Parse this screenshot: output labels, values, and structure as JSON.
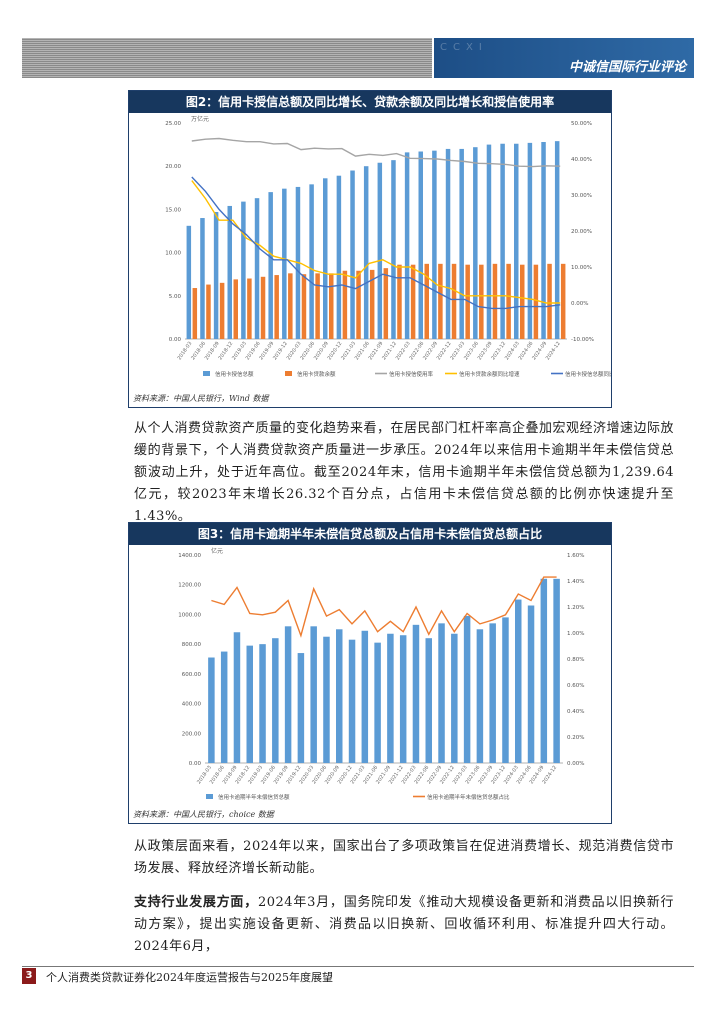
{
  "header": {
    "title": "中诚信国际行业评论",
    "deco": "CCXI"
  },
  "figure2": {
    "caption": "图2：信用卡授信总额及同比增长、贷款余额及同比增长和授信使用率",
    "unit_label": "万亿元",
    "source": "资料来源：中国人民银行，Wind 数据",
    "chart_data": {
      "type": "bar",
      "categories": [
        "2018-03",
        "2018-06",
        "2018-09",
        "2018-12",
        "2019-03",
        "2019-06",
        "2019-09",
        "2019-12",
        "2020-03",
        "2020-06",
        "2020-09",
        "2020-12",
        "2021-03",
        "2021-06",
        "2021-09",
        "2021-12",
        "2022-03",
        "2022-06",
        "2022-09",
        "2022-12",
        "2023-03",
        "2023-06",
        "2023-09",
        "2023-12",
        "2024-03",
        "2024-06",
        "2024-09",
        "2024-12"
      ],
      "x_tick_labels": [
        "2018-03",
        "2018-06",
        "2018-09",
        "2018-12",
        "2019-03",
        "2019-06",
        "2019-09",
        "2019-12",
        "2020-03",
        "2020-06",
        "2020-09",
        "2020-12",
        "2021-03",
        "2021-06",
        "2021-09",
        "2021-12",
        "2022-03",
        "2022-06",
        "2022-09",
        "2022-12",
        "2023-03",
        "2023-06",
        "2023-09",
        "2023-12",
        "2024-03",
        "2024-06",
        "2024-09",
        "2024-12"
      ],
      "y_left_ticks": [
        "0.00",
        "5.00",
        "10.00",
        "15.00",
        "20.00",
        "25.00"
      ],
      "y_right_ticks": [
        "-10.00%",
        "0.00%",
        "10.00%",
        "20.00%",
        "30.00%",
        "40.00%",
        "50.00%"
      ],
      "ylim_left": [
        0,
        25
      ],
      "ylim_right": [
        -10,
        50
      ],
      "series": [
        {
          "name": "信用卡授信总额",
          "kind": "bar",
          "axis": "left",
          "color": "#5b9bd5",
          "values": [
            13.1,
            14.0,
            14.7,
            15.4,
            15.9,
            16.3,
            17.0,
            17.4,
            17.6,
            17.9,
            18.6,
            18.9,
            19.5,
            20.0,
            20.4,
            20.7,
            21.6,
            21.7,
            21.8,
            22.0,
            22.0,
            22.2,
            22.5,
            22.6,
            22.6,
            22.7,
            22.8,
            22.9
          ]
        },
        {
          "name": "信用卡贷款余额",
          "kind": "bar",
          "axis": "left",
          "color": "#ed7d31",
          "values": [
            5.9,
            6.3,
            6.5,
            6.9,
            7.0,
            7.2,
            7.4,
            7.6,
            7.5,
            7.6,
            7.6,
            7.9,
            7.9,
            8.0,
            8.2,
            8.6,
            8.6,
            8.7,
            8.7,
            8.7,
            8.6,
            8.6,
            8.7,
            8.7,
            8.6,
            8.6,
            8.7,
            8.7
          ]
        },
        {
          "name": "信用卡授信使用率",
          "kind": "line",
          "axis": "right",
          "color": "#a5a5a5",
          "values": [
            45.0,
            45.5,
            45.7,
            45.2,
            44.8,
            44.8,
            44.2,
            44.3,
            42.6,
            43.0,
            42.8,
            42.9,
            40.8,
            41.3,
            41.0,
            41.5,
            40.2,
            40.1,
            40.0,
            39.6,
            39.3,
            38.8,
            38.7,
            38.5,
            38.0,
            37.9,
            38.1,
            38.0
          ]
        },
        {
          "name": "信用卡贷款余额同比增速",
          "kind": "line",
          "axis": "right",
          "color": "#ffc000",
          "values": [
            34.0,
            29.0,
            23.0,
            23.0,
            18.0,
            16.0,
            13.0,
            12.0,
            11.0,
            9.0,
            8.0,
            8.0,
            7.0,
            11.0,
            12.0,
            10.0,
            10.0,
            8.0,
            5.0,
            4.0,
            2.0,
            2.0,
            2.0,
            2.0,
            1.5,
            1.0,
            0.0,
            0.0
          ]
        },
        {
          "name": "信用卡授信总额同比增速",
          "kind": "line",
          "axis": "right",
          "color": "#4472c4",
          "values": [
            35.0,
            31.0,
            26.0,
            22.0,
            19.0,
            15.0,
            12.0,
            12.0,
            8.0,
            5.0,
            4.5,
            5.0,
            4.0,
            6.0,
            8.0,
            7.0,
            7.0,
            5.0,
            3.0,
            1.0,
            1.0,
            -1.0,
            -1.5,
            -1.5,
            -1.0,
            -1.0,
            -1.0,
            -0.5
          ]
        }
      ]
    }
  },
  "para1": "从个人消费贷款资产质量的变化趋势来看，在居民部门杠杆率高企叠加宏观经济增速边际放缓的背景下，个人消费贷款资产质量进一步承压。2024年以来信用卡逾期半年未偿信贷总额波动上升，处于近年高位。截至2024年末，信用卡逾期半年未偿信贷总额为1,239.64亿元，较2023年末增长26.32个百分点，占信用卡未偿信贷总额的比例亦快速提升至1.43%。",
  "figure3": {
    "caption": "图3：信用卡逾期半年未偿信贷总额及占信用卡未偿信贷总额占比",
    "unit_label": "亿元",
    "source": "资料来源：中国人民银行，choice 数据",
    "chart_data": {
      "type": "bar",
      "categories": [
        "2018-03",
        "2018-06",
        "2018-09",
        "2018-12",
        "2019-03",
        "2019-06",
        "2019-09",
        "2019-12",
        "2020-03",
        "2020-06",
        "2020-09",
        "2020-12",
        "2021-03",
        "2021-06",
        "2021-09",
        "2021-12",
        "2022-03",
        "2022-06",
        "2022-09",
        "2022-12",
        "2023-03",
        "2023-06",
        "2023-09",
        "2023-12",
        "2024-03",
        "2024-06",
        "2024-09",
        "2024-12"
      ],
      "x_tick_labels": [
        "2018-03",
        "2018-06",
        "2018-09",
        "2018-12",
        "2019-03",
        "2019-06",
        "2019-09",
        "2019-12",
        "2020-03",
        "2020-06",
        "2020-09",
        "2020-12",
        "2021-03",
        "2021-06",
        "2021-09",
        "2021-12",
        "2022-03",
        "2022-06",
        "2022-09",
        "2022-12",
        "2023-03",
        "2023-06",
        "2023-09",
        "2023-12",
        "2024-03",
        "2024-06",
        "2024-09",
        "2024-12"
      ],
      "y_left_ticks": [
        "0.00",
        "200.00",
        "400.00",
        "600.00",
        "800.00",
        "1000.00",
        "1200.00",
        "1400.00"
      ],
      "y_right_ticks": [
        "0.00%",
        "0.20%",
        "0.40%",
        "0.60%",
        "0.80%",
        "1.00%",
        "1.20%",
        "1.40%",
        "1.60%"
      ],
      "ylim_left": [
        0,
        1400
      ],
      "ylim_right": [
        0,
        1.6
      ],
      "series": [
        {
          "name": "信用卡逾期半年未偿信贷总额",
          "kind": "bar",
          "axis": "left",
          "color": "#5b9bd5",
          "values": [
            710,
            750,
            880,
            790,
            800,
            840,
            920,
            740,
            920,
            850,
            900,
            830,
            890,
            810,
            870,
            860,
            930,
            840,
            940,
            870,
            990,
            900,
            940,
            980,
            1100,
            1060,
            1240,
            1239.64
          ]
        },
        {
          "name": "信用卡逾期半年未偿信贷总额占比",
          "kind": "line",
          "axis": "right",
          "color": "#ed7d31",
          "values": [
            1.25,
            1.22,
            1.35,
            1.15,
            1.14,
            1.16,
            1.25,
            0.98,
            1.34,
            1.13,
            1.18,
            1.07,
            1.17,
            1.01,
            1.09,
            1.01,
            1.2,
            0.99,
            1.17,
            1.01,
            1.15,
            1.07,
            1.1,
            1.14,
            1.3,
            1.25,
            1.43,
            1.43
          ]
        }
      ]
    }
  },
  "para2": "从政策层面来看，2024年以来，国家出台了多项政策旨在促进消费增长、规范消费信贷市场发展、释放经济增长新动能。",
  "para3_bold": "支持行业发展方面，",
  "para3_rest": "2024年3月，国务院印发《推动大规模设备更新和消费品以旧换新行动方案》，提出实施设备更新、消费品以旧换新、回收循环利用、标准提升四大行动。2024年6月，",
  "footer": {
    "page": "3",
    "text": "个人消费类贷款证券化2024年度运营报告与2025年度展望"
  }
}
